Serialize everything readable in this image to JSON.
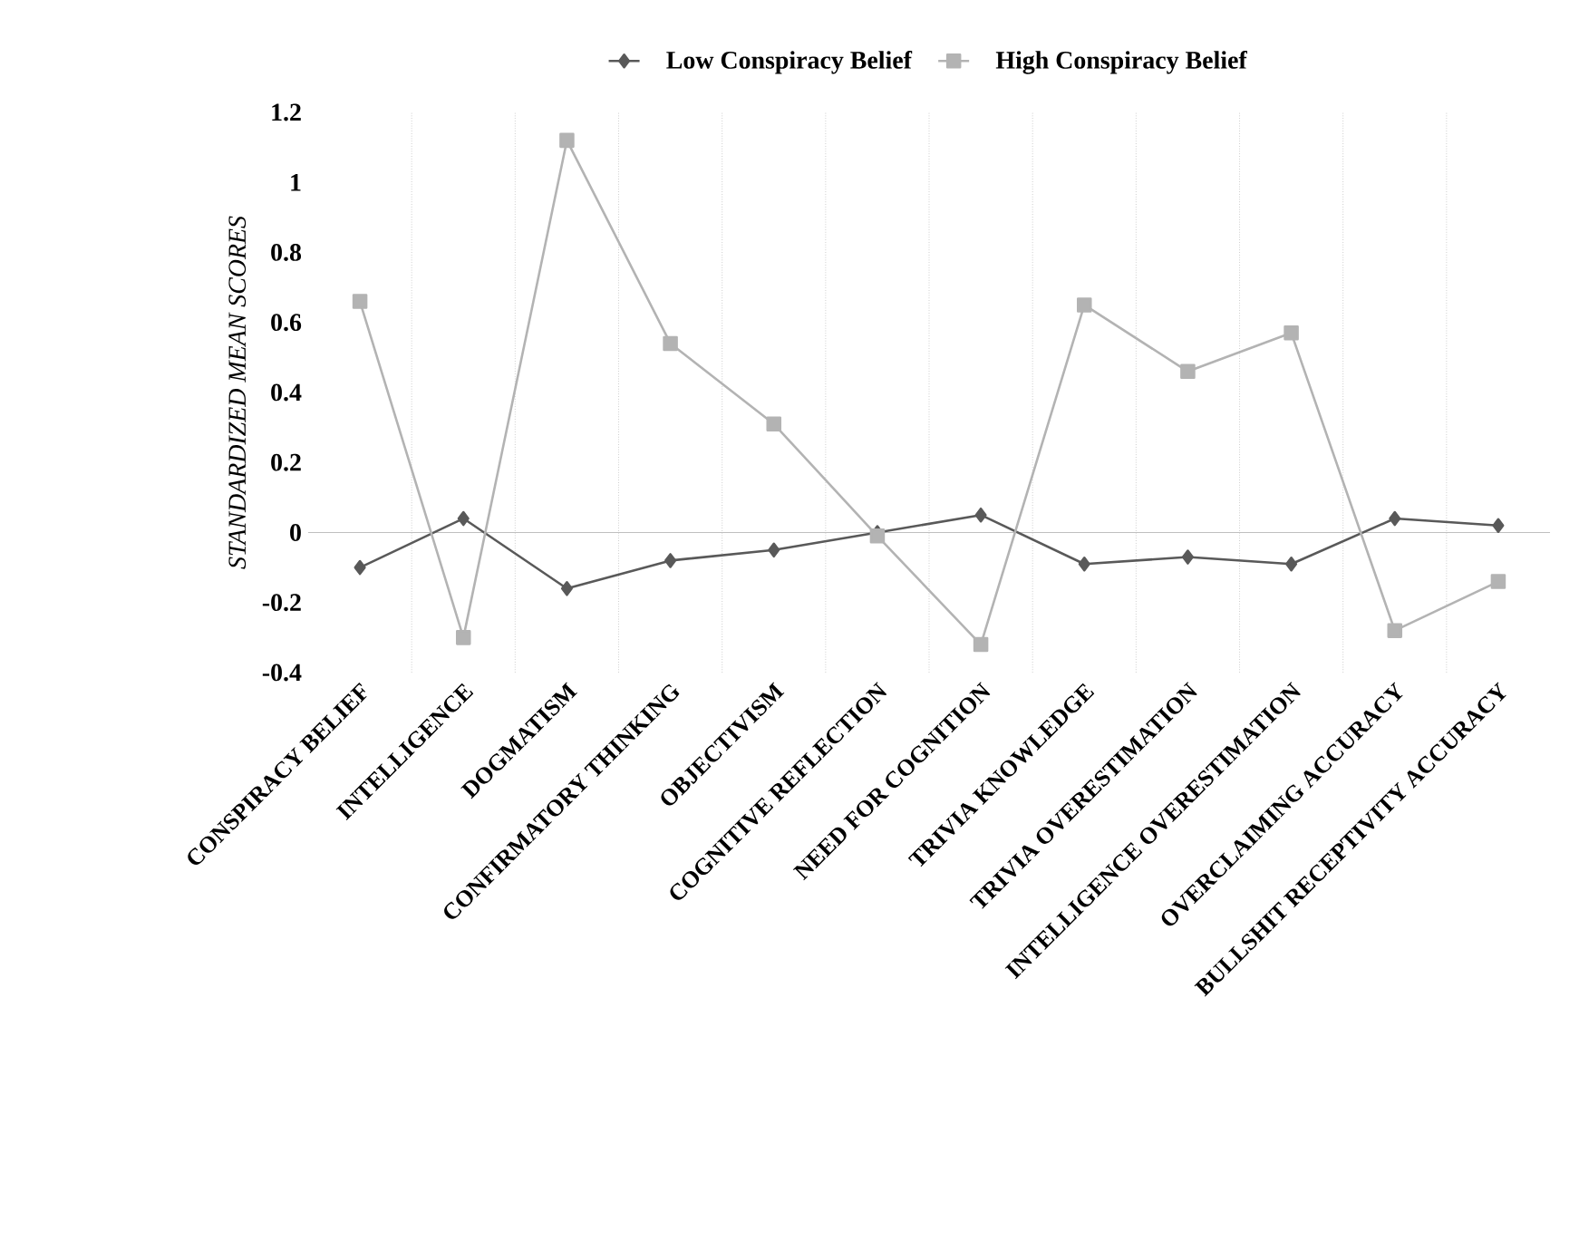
{
  "chart_data": {
    "type": "line",
    "ylabel": "STANDARDIZED MEAN SCORES",
    "categories": [
      "CONSPIRACY BELIEF",
      "INTELLIGENCE",
      "DOGMATISM",
      "CONFIRMATORY THINKING",
      "OBJECTIVISM",
      "COGNITIVE REFLECTION",
      "NEED FOR COGNITION",
      "TRIVIA KNOWLEDGE",
      "TRIVIA OVERESTIMATION",
      "INTELLIGENCE OVERESTIMATION",
      "OVERCLAIMING ACCURACY",
      "BULLSHIT RECEPTIVITY ACCURACY"
    ],
    "series": [
      {
        "name": "Low Conspiracy Belief",
        "color": "#595959",
        "marker": "diamond",
        "values": [
          -0.1,
          0.04,
          -0.16,
          -0.08,
          -0.05,
          0.0,
          0.05,
          -0.09,
          -0.07,
          -0.09,
          0.04,
          0.02
        ]
      },
      {
        "name": "High Conspiracy Belief",
        "color": "#b3b3b3",
        "marker": "square",
        "values": [
          0.66,
          -0.3,
          1.12,
          0.54,
          0.31,
          -0.01,
          -0.32,
          0.65,
          0.46,
          0.57,
          -0.28,
          -0.14
        ]
      }
    ],
    "ylim": [
      -0.4,
      1.2
    ],
    "yticks": [
      -0.4,
      -0.2,
      0,
      0.2,
      0.4,
      0.6,
      0.8,
      1,
      1.2
    ],
    "grid": "x",
    "legend": "top",
    "line_style": "solid"
  }
}
